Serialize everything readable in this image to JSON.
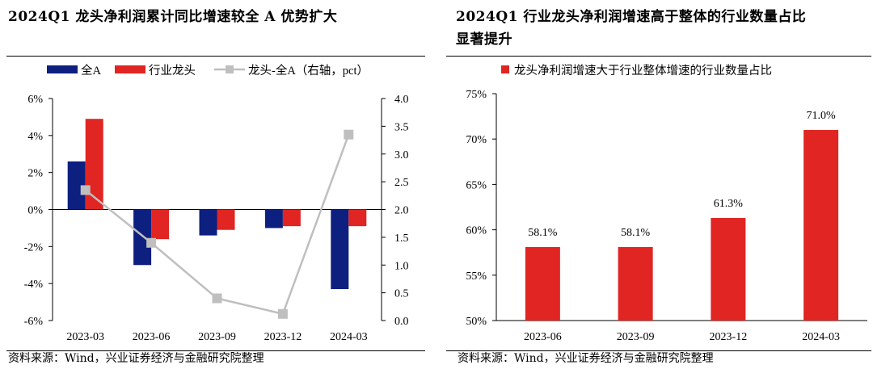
{
  "colors": {
    "all_a": "#0d1f7f",
    "leader": "#e02522",
    "diff": "#bfbfbf"
  },
  "left": {
    "title": "2024Q1 龙头净利润累计同比增速较全 A 优势扩大",
    "source": "资料来源：Wind，兴业证券经济与金融研究院整理",
    "legend": {
      "all_a": "全A",
      "leader": "行业龙头",
      "diff": "龙头-全A（右轴，pct）"
    }
  },
  "right": {
    "title_line1": "2024Q1 行业龙头净利润增速高于整体的行业数量占比",
    "title_line2": "显著提升",
    "source": "资料来源：Wind，兴业证券经济与金融研究院整理",
    "legend": {
      "series": "龙头净利润增速大于行业整体增速的行业数量占比"
    }
  },
  "chart_data": [
    {
      "type": "bar",
      "categories": [
        "2023-03",
        "2023-06",
        "2023-09",
        "2023-12",
        "2024-03"
      ],
      "series": [
        {
          "name": "全A",
          "type": "bar",
          "axis": "left",
          "values": [
            2.6,
            -3.0,
            -1.4,
            -1.0,
            -4.3
          ]
        },
        {
          "name": "行业龙头",
          "type": "bar",
          "axis": "left",
          "values": [
            4.9,
            -1.6,
            -1.1,
            -0.9,
            -0.9
          ]
        },
        {
          "name": "龙头-全A（右轴，pct）",
          "type": "line",
          "axis": "right",
          "values": [
            2.35,
            1.4,
            0.4,
            0.12,
            3.35
          ]
        }
      ],
      "y_left": {
        "min": -6,
        "max": 6,
        "step": 2,
        "tick_labels": [
          "-6%",
          "-4%",
          "-2%",
          "0%",
          "2%",
          "4%",
          "6%"
        ]
      },
      "y_right": {
        "min": 0,
        "max": 4,
        "step": 0.5,
        "tick_labels": [
          "0.0",
          "0.5",
          "1.0",
          "1.5",
          "2.0",
          "2.5",
          "3.0",
          "3.5",
          "4.0"
        ]
      },
      "legend_position": "top",
      "grid": false
    },
    {
      "type": "bar",
      "categories": [
        "2023-06",
        "2023-09",
        "2023-12",
        "2024-03"
      ],
      "series": [
        {
          "name": "龙头净利润增速大于行业整体增速的行业数量占比",
          "values": [
            58.1,
            58.1,
            61.3,
            71.0
          ],
          "data_labels": [
            "58.1%",
            "58.1%",
            "61.3%",
            "71.0%"
          ]
        }
      ],
      "y": {
        "min": 50,
        "max": 75,
        "step": 5,
        "tick_labels": [
          "50%",
          "55%",
          "60%",
          "65%",
          "70%",
          "75%"
        ]
      },
      "legend_position": "top",
      "grid": false
    }
  ]
}
